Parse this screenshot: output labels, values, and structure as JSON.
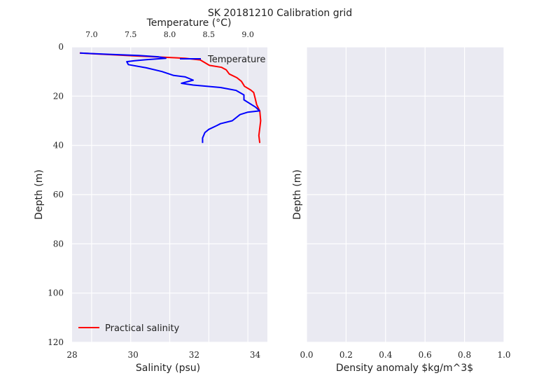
{
  "title": "SK 20181210  Calibration grid",
  "colors": {
    "background": "#eaeaf2",
    "grid": "#ffffff",
    "salinity": "#ff0000",
    "temperature": "#0000ff",
    "text": "#222222"
  },
  "chart_data": [
    {
      "type": "line",
      "ylabel": "Depth (m)",
      "ylim": [
        120,
        0
      ],
      "y_ticks": [
        0,
        20,
        40,
        60,
        80,
        100,
        120
      ],
      "y_tick_labels": [
        "0",
        "20",
        "40",
        "60",
        "80",
        "100",
        "120"
      ],
      "xlabel": "Salinity (psu)",
      "xlim": [
        28,
        34.4
      ],
      "x_ticks": [
        28,
        30,
        32,
        34
      ],
      "x_tick_labels": [
        "28",
        "30",
        "32",
        "34"
      ],
      "x2label": "Temperature (°C)",
      "x2lim": [
        6.75,
        9.25
      ],
      "x2_ticks": [
        7.0,
        7.5,
        8.0,
        8.5,
        9.0
      ],
      "x2_tick_labels": [
        "7.0",
        "7.5",
        "8.0",
        "8.5",
        "9.0"
      ],
      "grid": true,
      "series": [
        {
          "name": "Practical salinity",
          "axis": "bottom",
          "legend": "lower-left",
          "color": "#ff0000",
          "points": [
            [
              28.25,
              2.5
            ],
            [
              29.0,
              3.0
            ],
            [
              30.0,
              3.6
            ],
            [
              31.0,
              4.2
            ],
            [
              31.7,
              4.6
            ],
            [
              32.2,
              5.3
            ],
            [
              32.5,
              7.5
            ],
            [
              32.9,
              8.3
            ],
            [
              33.05,
              9.3
            ],
            [
              33.15,
              11.0
            ],
            [
              33.4,
              12.5
            ],
            [
              33.55,
              14.0
            ],
            [
              33.65,
              16.0
            ],
            [
              33.85,
              17.5
            ],
            [
              33.95,
              18.5
            ],
            [
              34.0,
              21.0
            ],
            [
              34.05,
              23.5
            ],
            [
              34.15,
              26.0
            ],
            [
              34.18,
              30.0
            ],
            [
              34.15,
              33.0
            ],
            [
              34.12,
              36.0
            ],
            [
              34.15,
              39.0
            ]
          ]
        },
        {
          "name": "Temperature",
          "axis": "top",
          "legend": "upper-right",
          "color": "#0000ff",
          "points": [
            [
              6.85,
              2.5
            ],
            [
              7.2,
              3.0
            ],
            [
              7.6,
              3.5
            ],
            [
              7.85,
              4.0
            ],
            [
              7.95,
              4.6
            ],
            [
              7.7,
              5.2
            ],
            [
              7.55,
              5.6
            ],
            [
              7.45,
              6.0
            ],
            [
              7.47,
              7.2
            ],
            [
              7.7,
              8.5
            ],
            [
              7.9,
              10.0
            ],
            [
              8.05,
              11.6
            ],
            [
              8.2,
              12.2
            ],
            [
              8.3,
              13.5
            ],
            [
              8.15,
              14.8
            ],
            [
              8.3,
              15.5
            ],
            [
              8.65,
              16.5
            ],
            [
              8.85,
              17.7
            ],
            [
              8.95,
              19.5
            ],
            [
              8.95,
              21.5
            ],
            [
              9.1,
              24.5
            ],
            [
              9.15,
              26.0
            ],
            [
              9.0,
              26.5
            ],
            [
              8.9,
              27.5
            ],
            [
              8.8,
              30.0
            ],
            [
              8.65,
              31.2
            ],
            [
              8.6,
              32.0
            ],
            [
              8.5,
              33.5
            ],
            [
              8.45,
              34.8
            ],
            [
              8.42,
              37.0
            ],
            [
              8.42,
              39.0
            ]
          ]
        }
      ]
    },
    {
      "type": "line",
      "ylabel": "Depth (m)",
      "ylim": [
        120,
        0
      ],
      "xlabel": "Density anomaly $kg/m^3$",
      "xlim": [
        0.0,
        1.0
      ],
      "x_ticks": [
        0.0,
        0.2,
        0.4,
        0.6,
        0.8,
        1.0
      ],
      "x_tick_labels": [
        "0.0",
        "0.2",
        "0.4",
        "0.6",
        "0.8",
        "1.0"
      ],
      "grid": true,
      "series": []
    }
  ]
}
